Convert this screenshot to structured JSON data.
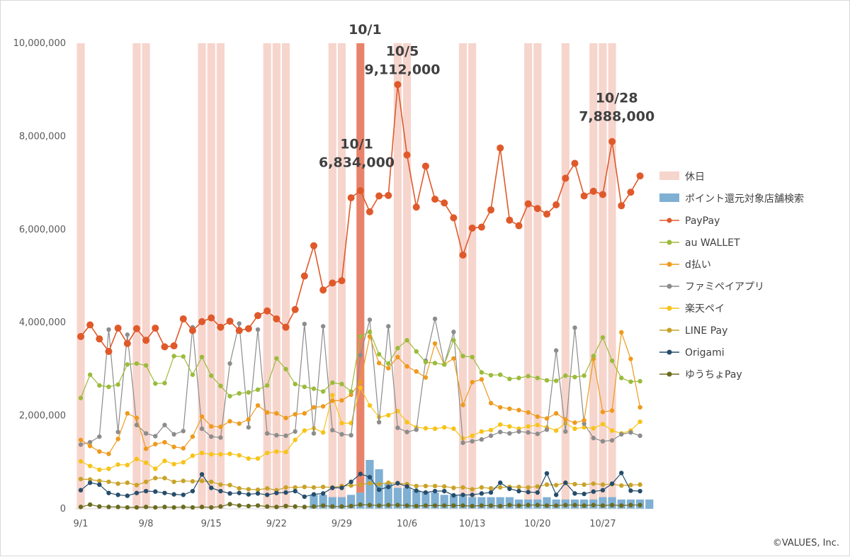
{
  "chart_data": {
    "type": "line",
    "credit": "©VALUES, Inc.",
    "ylim": [
      0,
      10000000
    ],
    "y_ticks": [
      {
        "value": 0,
        "label": "0"
      },
      {
        "value": 2000000,
        "label": "2,000,000"
      },
      {
        "value": 4000000,
        "label": "4,000,000"
      },
      {
        "value": 6000000,
        "label": "6,000,000"
      },
      {
        "value": 8000000,
        "label": "8,000,000"
      },
      {
        "value": 10000000,
        "label": "10,000,000"
      }
    ],
    "x_ticks": [
      {
        "day": 0,
        "label": "9/1"
      },
      {
        "day": 7,
        "label": "9/8"
      },
      {
        "day": 14,
        "label": "9/15"
      },
      {
        "day": 21,
        "label": "9/22"
      },
      {
        "day": 28,
        "label": "9/29"
      },
      {
        "day": 35,
        "label": "10/6"
      },
      {
        "day": 42,
        "label": "10/13"
      },
      {
        "day": 49,
        "label": "10/20"
      },
      {
        "day": 56,
        "label": "10/27"
      }
    ],
    "holidays": [
      0,
      6,
      7,
      13,
      14,
      15,
      20,
      21,
      22,
      27,
      28,
      34,
      35,
      41,
      42,
      48,
      49,
      52,
      55,
      56,
      57
    ],
    "highlight_day": 30,
    "legend": [
      {
        "key": "holiday",
        "label": "休日",
        "kind": "rect",
        "color": "#f6d5cd"
      },
      {
        "key": "search",
        "label": "ポイント還元対象店舗検索",
        "kind": "rect",
        "color": "#7fb0d3"
      },
      {
        "key": "paypay",
        "label": "PayPay",
        "kind": "line",
        "color": "#e0592a"
      },
      {
        "key": "auwallet",
        "label": "au WALLET",
        "kind": "line",
        "color": "#9bbb3b"
      },
      {
        "key": "dbarai",
        "label": "d払い",
        "kind": "line",
        "color": "#ee9a1d"
      },
      {
        "key": "famipay",
        "label": "ファミペイアプリ",
        "kind": "line",
        "color": "#8c8c8c"
      },
      {
        "key": "rakuten",
        "label": "楽天ペイ",
        "kind": "line",
        "color": "#f7c318"
      },
      {
        "key": "linepay",
        "label": "LINE Pay",
        "kind": "line",
        "color": "#c9a227"
      },
      {
        "key": "origami",
        "label": "Origami",
        "kind": "line",
        "color": "#264d6b"
      },
      {
        "key": "yucho",
        "label": "ゆうちょPay",
        "kind": "line",
        "color": "#6b6b1f"
      }
    ],
    "series": {
      "search": [
        0,
        0,
        0,
        0,
        0,
        0,
        0,
        0,
        0,
        0,
        0,
        0,
        0,
        0,
        0,
        0,
        0,
        0,
        0,
        0,
        0,
        0,
        0,
        0,
        0,
        300000,
        300000,
        250000,
        250000,
        300000,
        350000,
        1050000,
        850000,
        550000,
        450000,
        450000,
        400000,
        350000,
        350000,
        300000,
        300000,
        300000,
        250000,
        250000,
        250000,
        250000,
        250000,
        200000,
        200000,
        200000,
        250000,
        200000,
        200000,
        200000,
        200000,
        200000,
        250000,
        250000,
        200000,
        200000,
        200000,
        200000
      ],
      "paypay": [
        3700000,
        3950000,
        3650000,
        3380000,
        3880000,
        3550000,
        3870000,
        3620000,
        3880000,
        3480000,
        3500000,
        4080000,
        3830000,
        4020000,
        4100000,
        3900000,
        4030000,
        3830000,
        3870000,
        4150000,
        4250000,
        4080000,
        3900000,
        4280000,
        5000000,
        5650000,
        4700000,
        4850000,
        4900000,
        6680000,
        6834000,
        6380000,
        6720000,
        6730000,
        9112000,
        7600000,
        6480000,
        7360000,
        6650000,
        6570000,
        6250000,
        5450000,
        6030000,
        6050000,
        6420000,
        7750000,
        6200000,
        6080000,
        6550000,
        6450000,
        6330000,
        6530000,
        7100000,
        7420000,
        6720000,
        6820000,
        6750000,
        7888000,
        6510000,
        6800000,
        7150000
      ],
      "auwallet": [
        2380000,
        2880000,
        2650000,
        2620000,
        2670000,
        3100000,
        3120000,
        3080000,
        2690000,
        2700000,
        3280000,
        3270000,
        2880000,
        3260000,
        2860000,
        2640000,
        2420000,
        2480000,
        2500000,
        2560000,
        2650000,
        3230000,
        3000000,
        2680000,
        2620000,
        2580000,
        2520000,
        2710000,
        2680000,
        2520000,
        3700000,
        3800000,
        3320000,
        3120000,
        3450000,
        3620000,
        3380000,
        3150000,
        3130000,
        3100000,
        3620000,
        3280000,
        3260000,
        2930000,
        2870000,
        2880000,
        2790000,
        2810000,
        2850000,
        2810000,
        2760000,
        2750000,
        2860000,
        2830000,
        2860000,
        3280000,
        3680000,
        3180000,
        2810000,
        2730000,
        2740000
      ],
      "dbarai": [
        1480000,
        1350000,
        1230000,
        1180000,
        1500000,
        2050000,
        1950000,
        1290000,
        1390000,
        1430000,
        1330000,
        1300000,
        1550000,
        1980000,
        1770000,
        1760000,
        1880000,
        1830000,
        1920000,
        2220000,
        2070000,
        2050000,
        1950000,
        2030000,
        2050000,
        2180000,
        2200000,
        2320000,
        2330000,
        2450000,
        2720000,
        3700000,
        3130000,
        3020000,
        3260000,
        3060000,
        2950000,
        2820000,
        3550000,
        3100000,
        3230000,
        2230000,
        2720000,
        2780000,
        2270000,
        2180000,
        2150000,
        2120000,
        2070000,
        1980000,
        1940000,
        2050000,
        1920000,
        1850000,
        1900000,
        3220000,
        2080000,
        2110000,
        3790000,
        3220000,
        2180000
      ],
      "famipay": [
        1380000,
        1430000,
        1550000,
        3850000,
        1650000,
        3740000,
        1800000,
        1620000,
        1560000,
        1800000,
        1600000,
        1670000,
        3900000,
        1720000,
        1550000,
        1530000,
        3120000,
        3980000,
        1750000,
        3850000,
        1620000,
        1580000,
        1570000,
        1660000,
        3970000,
        1620000,
        3920000,
        1690000,
        1600000,
        1580000,
        3300000,
        4060000,
        1860000,
        3920000,
        1740000,
        1650000,
        1700000,
        3180000,
        4080000,
        3100000,
        3800000,
        1420000,
        1450000,
        1490000,
        1570000,
        1650000,
        1620000,
        1660000,
        1640000,
        1610000,
        1700000,
        3400000,
        1660000,
        3890000,
        1830000,
        1520000,
        1450000,
        1470000,
        1600000,
        1640000,
        1570000
      ],
      "rakuten": [
        1020000,
        920000,
        840000,
        860000,
        950000,
        940000,
        1070000,
        990000,
        860000,
        1030000,
        960000,
        1000000,
        1140000,
        1200000,
        1170000,
        1170000,
        1180000,
        1150000,
        1080000,
        1080000,
        1200000,
        1230000,
        1220000,
        1480000,
        1680000,
        1730000,
        1640000,
        2440000,
        1840000,
        1840000,
        2600000,
        2220000,
        1970000,
        2010000,
        2100000,
        1860000,
        1750000,
        1730000,
        1720000,
        1750000,
        1720000,
        1510000,
        1570000,
        1660000,
        1690000,
        1810000,
        1770000,
        1720000,
        1770000,
        1800000,
        1750000,
        1680000,
        1840000,
        1720000,
        1750000,
        1730000,
        1820000,
        1680000,
        1620000,
        1680000,
        1870000
      ],
      "linepay": [
        640000,
        630000,
        600000,
        580000,
        540000,
        560000,
        510000,
        580000,
        660000,
        660000,
        580000,
        600000,
        590000,
        600000,
        580000,
        520000,
        510000,
        440000,
        420000,
        410000,
        440000,
        400000,
        460000,
        460000,
        470000,
        460000,
        470000,
        460000,
        490000,
        500000,
        520000,
        550000,
        530000,
        560000,
        550000,
        530000,
        490000,
        490000,
        490000,
        480000,
        450000,
        460000,
        420000,
        460000,
        440000,
        460000,
        470000,
        470000,
        460000,
        480000,
        520000,
        510000,
        560000,
        530000,
        520000,
        540000,
        520000,
        530000,
        500000,
        510000,
        520000
      ],
      "origami": [
        400000,
        560000,
        520000,
        340000,
        300000,
        280000,
        340000,
        380000,
        370000,
        340000,
        310000,
        300000,
        380000,
        740000,
        450000,
        380000,
        330000,
        340000,
        310000,
        330000,
        300000,
        340000,
        350000,
        380000,
        260000,
        310000,
        330000,
        450000,
        450000,
        580000,
        750000,
        680000,
        410000,
        470000,
        550000,
        480000,
        390000,
        350000,
        380000,
        380000,
        290000,
        300000,
        300000,
        330000,
        350000,
        560000,
        430000,
        380000,
        360000,
        350000,
        760000,
        300000,
        560000,
        330000,
        320000,
        370000,
        400000,
        540000,
        770000,
        390000,
        380000
      ],
      "yucho": [
        40000,
        90000,
        50000,
        40000,
        40000,
        30000,
        30000,
        40000,
        30000,
        40000,
        30000,
        40000,
        30000,
        40000,
        30000,
        50000,
        100000,
        70000,
        60000,
        70000,
        50000,
        40000,
        60000,
        50000,
        40000,
        50000,
        70000,
        50000,
        50000,
        60000,
        90000,
        80000,
        70000,
        80000,
        80000,
        70000,
        60000,
        70000,
        70000,
        70000,
        70000,
        70000,
        60000,
        70000,
        70000,
        60000,
        80000,
        70000,
        80000,
        80000,
        70000,
        70000,
        80000,
        80000,
        70000,
        80000,
        70000,
        80000,
        70000,
        80000,
        80000
      ]
    },
    "annotations": [
      {
        "lines": [
          "10/1"
        ],
        "day": 30.5,
        "value": 10200000
      },
      {
        "lines": [
          "10/5",
          "9,112,000"
        ],
        "day": 34.5,
        "value": 9730000
      },
      {
        "lines": [
          "10/1",
          "6,834,000"
        ],
        "day": 29.6,
        "value": 7740000
      },
      {
        "lines": [
          "10/28",
          "7,888,000"
        ],
        "day": 57.5,
        "value": 8730000
      }
    ]
  }
}
